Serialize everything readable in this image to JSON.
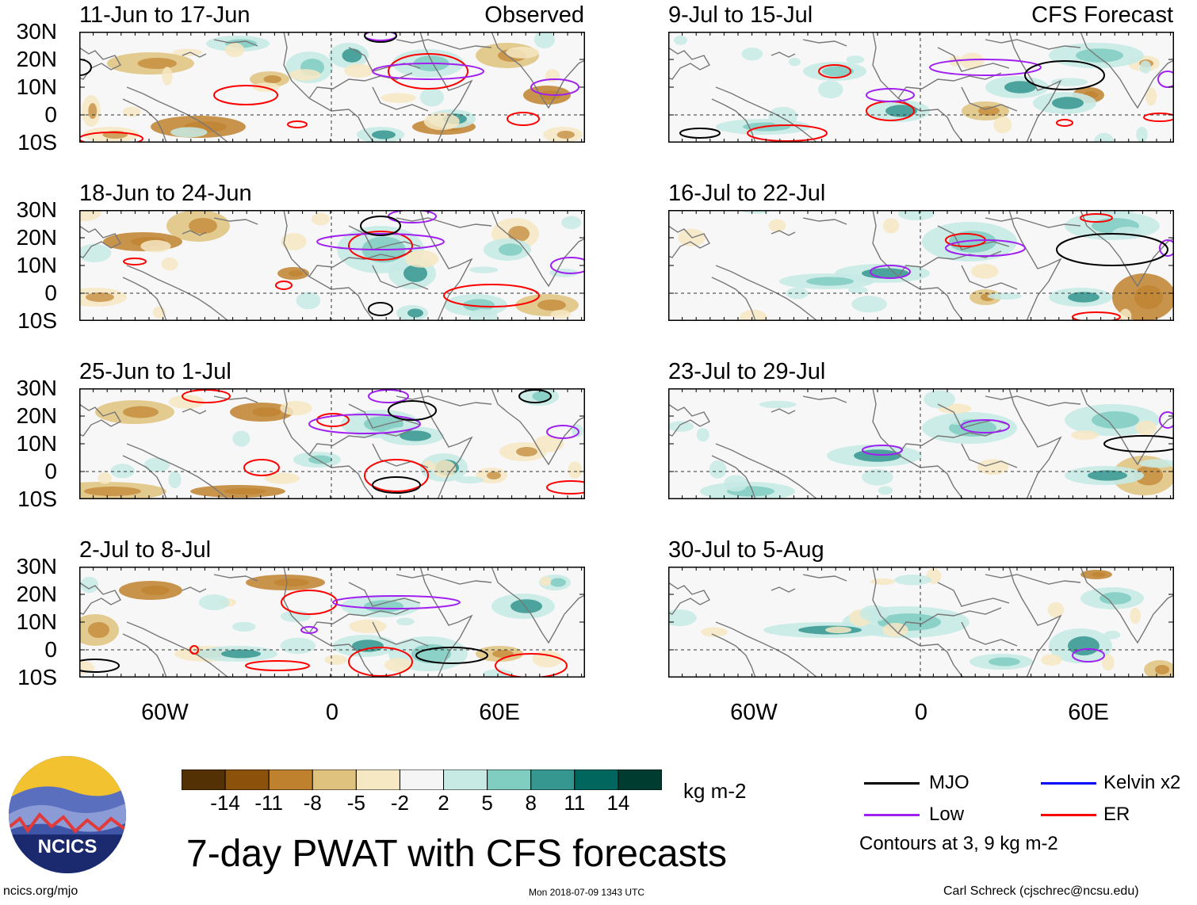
{
  "title": "7-day PWAT with CFS forecasts",
  "left_column_label": "Observed",
  "right_column_label": "CFS Forecast",
  "panels_left": [
    {
      "title": "11-Jun to 17-Jun"
    },
    {
      "title": "18-Jun to 24-Jun"
    },
    {
      "title": "25-Jun to 1-Jul"
    },
    {
      "title": "2-Jul to 8-Jul"
    }
  ],
  "panels_right": [
    {
      "title": "9-Jul to 15-Jul"
    },
    {
      "title": "16-Jul to 22-Jul"
    },
    {
      "title": "23-Jul to 29-Jul"
    },
    {
      "title": "30-Jul to 5-Aug"
    }
  ],
  "lat_labels": [
    "30N",
    "20N",
    "10N",
    "0",
    "10S"
  ],
  "lon_labels": [
    "60W",
    "0",
    "60E"
  ],
  "colorbar": {
    "ticks": [
      "-14",
      "-11",
      "-8",
      "-5",
      "-2",
      "2",
      "5",
      "8",
      "11",
      "14"
    ],
    "units": "kg m-2",
    "colors": [
      "#543005",
      "#8c510a",
      "#bf812d",
      "#dfc27d",
      "#f6e8c3",
      "#f5f5f5",
      "#c7eae5",
      "#80cdc1",
      "#35978f",
      "#01665e",
      "#003c30"
    ]
  },
  "legend": {
    "mjo": {
      "label": "MJO",
      "color": "#000000"
    },
    "kelvin": {
      "label": "Kelvin x2",
      "color": "#0000ff"
    },
    "low": {
      "label": "Low",
      "color": "#a020f0"
    },
    "er": {
      "label": "ER",
      "color": "#ff0000"
    },
    "note": "Contours at 3, 9 kg m-2"
  },
  "logo_text": "NCICS",
  "footer": {
    "site": "ncics.org/mjo",
    "timestamp": "Mon 2018-07-09 1343 UTC",
    "credit": "Carl Schreck (cjschrec@ncsu.edu)"
  }
}
